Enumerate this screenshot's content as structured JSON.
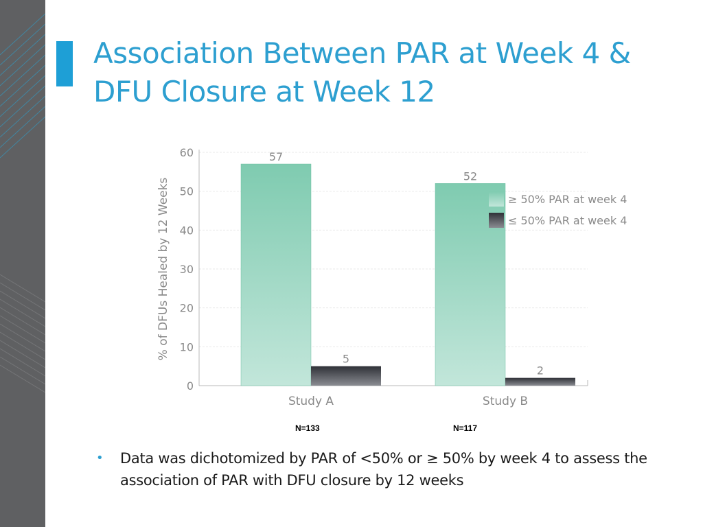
{
  "slide": {
    "title_lines": [
      "Association Between PAR at Week 4 &",
      "DFU Closure at Week 12"
    ],
    "bullets": [
      "Data was dichotomized by PAR of <50% or ≥ 50% by week 4 to assess the association of PAR with DFU closure by 12 weeks"
    ],
    "n_labels": [
      "N=133",
      "N=117"
    ],
    "colors": {
      "title": "#2d9fd0",
      "accent_bar": "#1e9fd6",
      "side_panel": "#5f6062",
      "series_high": "#8dd0b7",
      "series_low": "#3c3e44"
    }
  },
  "chart_data": {
    "type": "bar",
    "categories": [
      "Study A",
      "Study B"
    ],
    "series": [
      {
        "name": "≥  50% PAR at week 4",
        "values": [
          57,
          52
        ],
        "color": "#8dd0b7"
      },
      {
        "name": "≤  50% PAR at week 4",
        "values": [
          5,
          2
        ],
        "color": "#3c3e44"
      }
    ],
    "data_labels": [
      [
        "57",
        "52"
      ],
      [
        "5",
        "2"
      ]
    ],
    "ylabel": "% of DFUs Healed by 12 Weeks",
    "xlabel": "",
    "ylim": [
      0,
      60
    ],
    "yticks": [
      0,
      10,
      20,
      30,
      40,
      50,
      60
    ],
    "grid": true,
    "legend_position": "right"
  }
}
